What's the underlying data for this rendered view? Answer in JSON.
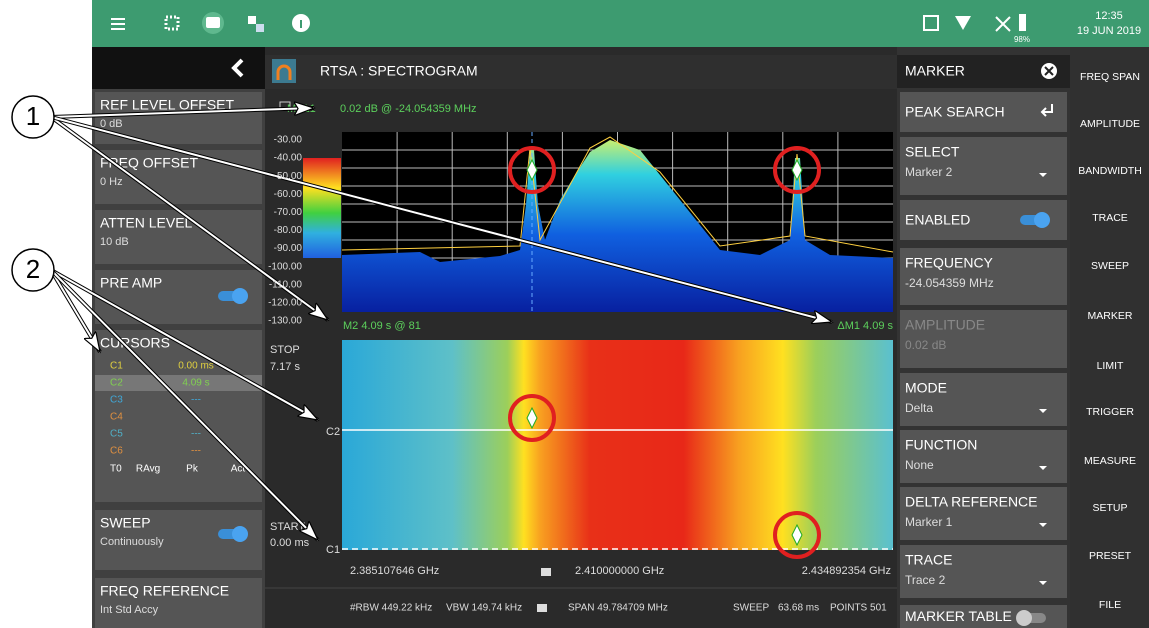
{
  "status_bar": {
    "time": "12:35",
    "date": "19 JUN 2019",
    "battery": "98%"
  },
  "left_panel": {
    "ref_level_offset": {
      "label": "REF LEVEL OFFSET",
      "value": "0 dB"
    },
    "freq_offset": {
      "label": "FREQ OFFSET",
      "value": "0 Hz"
    },
    "atten_level": {
      "label": "ATTEN LEVEL",
      "value": "10 dB"
    },
    "pre_amp": {
      "label": "PRE AMP"
    },
    "cursors": {
      "label": "CURSORS",
      "rows": [
        {
          "name": "C1",
          "value": "0.00 ms"
        },
        {
          "name": "C2",
          "value": "4.09 s"
        },
        {
          "name": "C3",
          "value": "---"
        },
        {
          "name": "C4"
        },
        {
          "name": "C5",
          "value": "---"
        },
        {
          "name": "C6",
          "value": "---"
        }
      ],
      "columns": [
        "T0",
        "RAvg",
        "Pk",
        "Act"
      ]
    },
    "sweep": {
      "label": "SWEEP",
      "value": "Continuously"
    },
    "freq_reference": {
      "label": "FREQ REFERENCE",
      "value": "Int Std Accy"
    }
  },
  "main": {
    "title": "RTSA : SPECTROGRAM",
    "marker_readout": {
      "label": "M2Δ1",
      "value": "0.02 dB @ -24.054359 MHz"
    },
    "y_axis_labels": [
      "-30.00",
      "-40.00",
      "-50.00",
      "-60.00",
      "-70.00",
      "-80.00",
      "-90.00",
      "-100.00",
      "-110.00",
      "-120.00",
      "-130.00"
    ],
    "trace_readout_left": "M2 4.09 s @ 81",
    "trace_readout_right": "ΔM1 4.09 s",
    "stop": {
      "label": "STOP",
      "value": "7.17 s"
    },
    "start": {
      "label": "START",
      "value": "0.00 ms"
    },
    "cursor_labels": [
      "C2",
      "C1"
    ],
    "frequencies": {
      "start": "2.385107646 GHz",
      "center": "2.410000000 GHz",
      "stop": "2.434892354 GHz"
    },
    "footer": {
      "rbw": "#RBW 449.22 kHz",
      "vbw": "VBW 149.74 kHz",
      "span": "SPAN 49.784709 MHz",
      "sweep_label": "SWEEP",
      "sweep": "63.68 ms",
      "points": "POINTS 501"
    }
  },
  "marker_panel": {
    "title": "MARKER",
    "items": [
      {
        "label": "PEAK SEARCH"
      },
      {
        "label": "SELECT",
        "value": "Marker 2"
      },
      {
        "label": "ENABLED"
      },
      {
        "label": "FREQUENCY",
        "value": "-24.054359 MHz"
      },
      {
        "label": "AMPLITUDE",
        "value": "0.02 dB"
      },
      {
        "label": "MODE",
        "value": "Delta"
      },
      {
        "label": "FUNCTION",
        "value": "None"
      },
      {
        "label": "DELTA REFERENCE",
        "value": "Marker 1"
      },
      {
        "label": "TRACE",
        "value": "Trace 2"
      },
      {
        "label": "MARKER TABLE"
      }
    ]
  },
  "menu": [
    "FREQ SPAN",
    "AMPLITUDE",
    "BANDWIDTH",
    "TRACE",
    "SWEEP",
    "MARKER",
    "LIMIT",
    "TRIGGER",
    "MEASURE",
    "SETUP",
    "PRESET",
    "FILE"
  ],
  "callouts": [
    "1",
    "2"
  ]
}
